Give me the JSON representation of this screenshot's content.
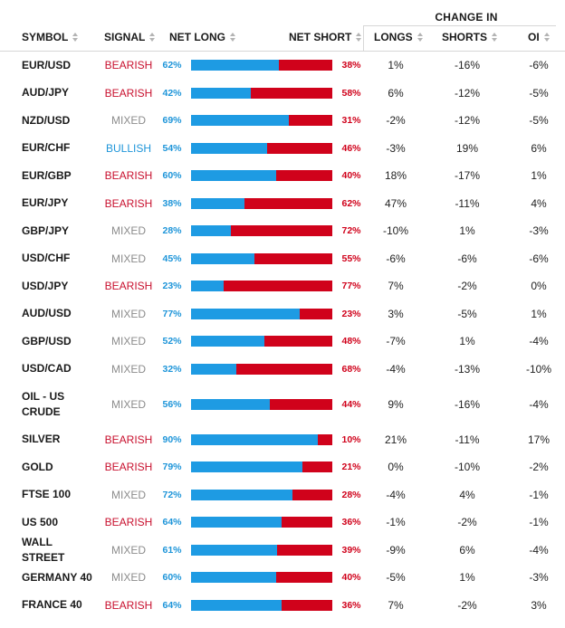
{
  "header": {
    "change_in": "CHANGE IN",
    "symbol": "SYMBOL",
    "signal": "SIGNAL",
    "net_long": "NET LONG",
    "net_short": "NET SHORT",
    "longs": "LONGS",
    "shorts": "SHORTS",
    "oi": "OI"
  },
  "colors": {
    "bearish": "#c8102e",
    "bullish": "#1e95d9",
    "mixed": "#8c8c8c",
    "long_bar": "#1e9be3",
    "short_bar": "#d0021b"
  },
  "rows": [
    {
      "symbol": "EUR/USD",
      "signal": "BEARISH",
      "net_long": "62%",
      "net_short": "38%",
      "longs": "1%",
      "shorts": "-16%",
      "oi": "-6%",
      "long_pct": 62
    },
    {
      "symbol": "AUD/JPY",
      "signal": "BEARISH",
      "net_long": "42%",
      "net_short": "58%",
      "longs": "6%",
      "shorts": "-12%",
      "oi": "-5%",
      "long_pct": 42
    },
    {
      "symbol": "NZD/USD",
      "signal": "MIXED",
      "net_long": "69%",
      "net_short": "31%",
      "longs": "-2%",
      "shorts": "-12%",
      "oi": "-5%",
      "long_pct": 69
    },
    {
      "symbol": "EUR/CHF",
      "signal": "BULLISH",
      "net_long": "54%",
      "net_short": "46%",
      "longs": "-3%",
      "shorts": "19%",
      "oi": "6%",
      "long_pct": 54
    },
    {
      "symbol": "EUR/GBP",
      "signal": "BEARISH",
      "net_long": "60%",
      "net_short": "40%",
      "longs": "18%",
      "shorts": "-17%",
      "oi": "1%",
      "long_pct": 60
    },
    {
      "symbol": "EUR/JPY",
      "signal": "BEARISH",
      "net_long": "38%",
      "net_short": "62%",
      "longs": "47%",
      "shorts": "-11%",
      "oi": "4%",
      "long_pct": 38
    },
    {
      "symbol": "GBP/JPY",
      "signal": "MIXED",
      "net_long": "28%",
      "net_short": "72%",
      "longs": "-10%",
      "shorts": "1%",
      "oi": "-3%",
      "long_pct": 28
    },
    {
      "symbol": "USD/CHF",
      "signal": "MIXED",
      "net_long": "45%",
      "net_short": "55%",
      "longs": "-6%",
      "shorts": "-6%",
      "oi": "-6%",
      "long_pct": 45
    },
    {
      "symbol": "USD/JPY",
      "signal": "BEARISH",
      "net_long": "23%",
      "net_short": "77%",
      "longs": "7%",
      "shorts": "-2%",
      "oi": "0%",
      "long_pct": 23
    },
    {
      "symbol": "AUD/USD",
      "signal": "MIXED",
      "net_long": "77%",
      "net_short": "23%",
      "longs": "3%",
      "shorts": "-5%",
      "oi": "1%",
      "long_pct": 77
    },
    {
      "symbol": "GBP/USD",
      "signal": "MIXED",
      "net_long": "52%",
      "net_short": "48%",
      "longs": "-7%",
      "shorts": "1%",
      "oi": "-4%",
      "long_pct": 52
    },
    {
      "symbol": "USD/CAD",
      "signal": "MIXED",
      "net_long": "32%",
      "net_short": "68%",
      "longs": "-4%",
      "shorts": "-13%",
      "oi": "-10%",
      "long_pct": 32
    },
    {
      "symbol": "OIL - US CRUDE",
      "signal": "MIXED",
      "net_long": "56%",
      "net_short": "44%",
      "longs": "9%",
      "shorts": "-16%",
      "oi": "-4%",
      "long_pct": 56
    },
    {
      "symbol": "SILVER",
      "signal": "BEARISH",
      "net_long": "90%",
      "net_short": "10%",
      "longs": "21%",
      "shorts": "-11%",
      "oi": "17%",
      "long_pct": 90
    },
    {
      "symbol": "GOLD",
      "signal": "BEARISH",
      "net_long": "79%",
      "net_short": "21%",
      "longs": "0%",
      "shorts": "-10%",
      "oi": "-2%",
      "long_pct": 79
    },
    {
      "symbol": "FTSE 100",
      "signal": "MIXED",
      "net_long": "72%",
      "net_short": "28%",
      "longs": "-4%",
      "shorts": "4%",
      "oi": "-1%",
      "long_pct": 72
    },
    {
      "symbol": "US 500",
      "signal": "BEARISH",
      "net_long": "64%",
      "net_short": "36%",
      "longs": "-1%",
      "shorts": "-2%",
      "oi": "-1%",
      "long_pct": 64
    },
    {
      "symbol": "WALL STREET",
      "signal": "MIXED",
      "net_long": "61%",
      "net_short": "39%",
      "longs": "-9%",
      "shorts": "6%",
      "oi": "-4%",
      "long_pct": 61
    },
    {
      "symbol": "GERMANY 40",
      "signal": "MIXED",
      "net_long": "60%",
      "net_short": "40%",
      "longs": "-5%",
      "shorts": "1%",
      "oi": "-3%",
      "long_pct": 60
    },
    {
      "symbol": "FRANCE 40",
      "signal": "BEARISH",
      "net_long": "64%",
      "net_short": "36%",
      "longs": "7%",
      "shorts": "-2%",
      "oi": "3%",
      "long_pct": 64
    }
  ]
}
